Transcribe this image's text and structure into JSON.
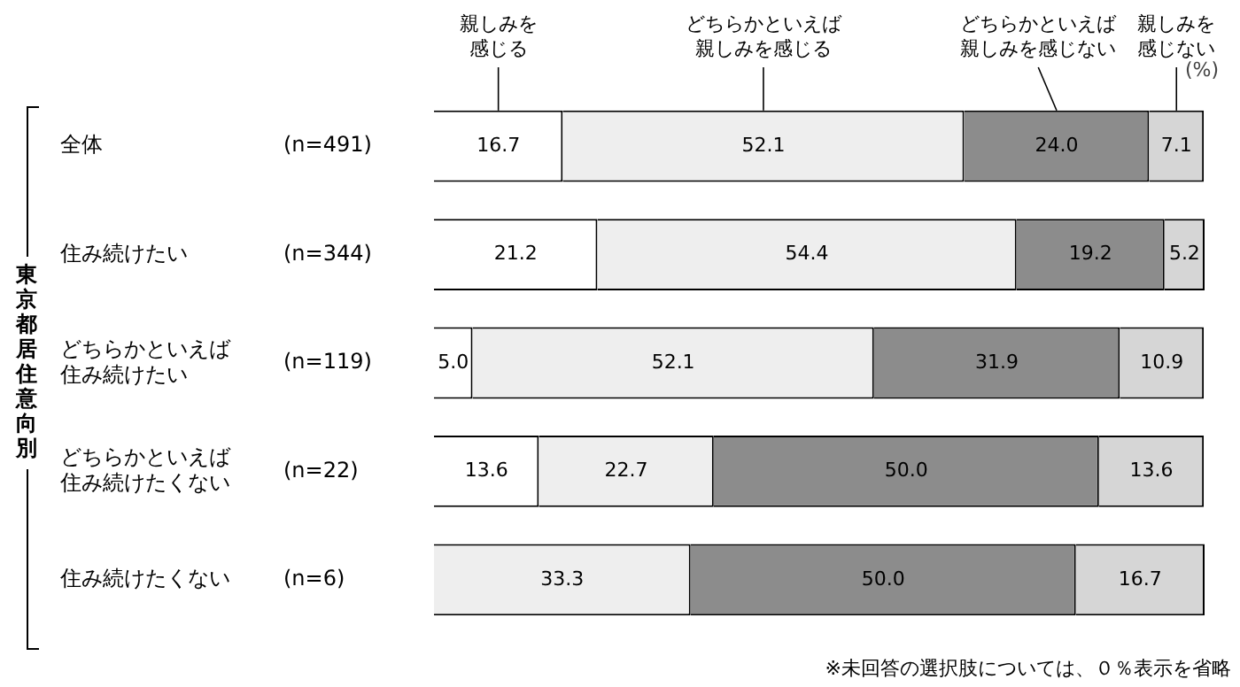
{
  "chart_data": {
    "type": "bar",
    "orientation": "horizontal",
    "stacked": true,
    "ylabel": "東京都居住意向別",
    "legend": "top",
    "categories": [
      "全体",
      "住み続けたい",
      "どちらかといえば住み続けたい",
      "どちらかといえば住み続けたくない",
      "住み続けたくない"
    ],
    "xlim": [
      0,
      100
    ],
    "series": [
      {
        "name": "親しみを感じる",
        "color": "#ffffff",
        "values": [
          16.7,
          21.2,
          5.0,
          13.6,
          null
        ],
        "value_labels": [
          "16.7",
          "21.2",
          "5.0",
          "13.6",
          null
        ]
      },
      {
        "name": "どちらかといえば親しみを感じる",
        "color": "#eeeeee",
        "values": [
          52.1,
          54.4,
          52.1,
          22.7,
          33.3
        ],
        "value_labels": [
          "52.1",
          "54.4",
          "52.1",
          "22.7",
          "33.3"
        ]
      },
      {
        "name": "どちらかといえば親しみを感じない",
        "color": "#8c8c8c",
        "values": [
          24.0,
          19.2,
          31.9,
          50.0,
          50.0
        ],
        "value_labels": [
          "24.0",
          "19.2",
          "31.9",
          "50.0",
          "50.0"
        ]
      },
      {
        "name": "親しみを感じない",
        "color": "#d6d6d6",
        "values": [
          7.1,
          5.2,
          10.9,
          13.6,
          16.7
        ],
        "value_labels": [
          "7.1",
          "5.2",
          "10.9",
          "13.6",
          "16.7"
        ]
      }
    ],
    "annotations": [
      "(n=491)",
      "(n=344)",
      "(n=119)",
      "(n=22)",
      "(n=6)",
      "(%)",
      "※未回答の選択肢については、０％表示を省略"
    ]
  }
}
